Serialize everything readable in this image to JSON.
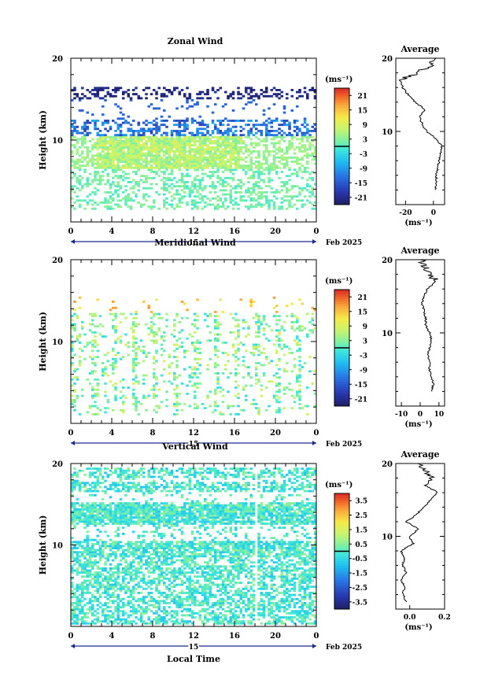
{
  "chart_data": [
    {
      "type": "heatmap",
      "title": "Zonal Wind",
      "ylabel": "Height (km)",
      "yticks": [
        "10",
        "20"
      ],
      "xticks": [
        "0",
        "4",
        "8",
        "12",
        "16",
        "20",
        "0"
      ],
      "day_label": "15",
      "month_label": "Feb 2025",
      "xlim": [
        0,
        24
      ],
      "ylim": [
        0,
        20
      ],
      "colorbar": {
        "unit": "(ms⁻¹)",
        "ticks": [
          "21",
          "15",
          "9",
          "3",
          "-3",
          "-9",
          "-15",
          "-21"
        ],
        "range": [
          -24,
          24
        ]
      },
      "average_panel": {
        "title": "Average",
        "xlabel": "(ms⁻¹)",
        "xticks": [
          "-20",
          "0"
        ],
        "ytick": "10",
        "xlim": [
          -27,
          8
        ],
        "profile": {
          "heights": [
            2,
            3,
            4,
            5,
            6,
            7,
            8,
            9,
            10,
            11,
            12,
            13,
            14,
            15,
            16,
            17,
            18,
            19,
            20
          ],
          "values": [
            1,
            2,
            2,
            3,
            4,
            5,
            6,
            2,
            -5,
            -8,
            -10,
            -6,
            -13,
            -18,
            -22,
            -24,
            -12,
            -3,
            2
          ]
        }
      }
    },
    {
      "type": "heatmap",
      "title": "Meridional Wind",
      "ylabel": "Height (km)",
      "yticks": [
        "10",
        "20"
      ],
      "xticks": [
        "0",
        "4",
        "8",
        "12",
        "16",
        "20",
        "0"
      ],
      "day_label": "15",
      "month_label": "Feb 2025",
      "xlim": [
        0,
        24
      ],
      "ylim": [
        0,
        20
      ],
      "colorbar": {
        "unit": "(ms⁻¹)",
        "ticks": [
          "21",
          "15",
          "9",
          "3",
          "-3",
          "-9",
          "-15",
          "-21"
        ],
        "range": [
          -24,
          24
        ]
      },
      "average_panel": {
        "title": "Average",
        "xlabel": "(ms⁻¹)",
        "xticks": [
          "-10",
          "0",
          "10"
        ],
        "ytick": "10",
        "xlim": [
          -13,
          13
        ],
        "profile": {
          "heights": [
            2,
            3,
            4,
            5,
            6,
            7,
            8,
            9,
            10,
            11,
            12,
            13,
            14,
            15,
            16,
            17,
            18,
            19,
            20
          ],
          "values": [
            6,
            7,
            6,
            5,
            5,
            4,
            5,
            6,
            5,
            3,
            3,
            2,
            1,
            2,
            4,
            8,
            6,
            3,
            0
          ]
        }
      }
    },
    {
      "type": "heatmap",
      "title": "Vertical Wind",
      "ylabel": "Height (km)",
      "yticks": [
        "10",
        "20"
      ],
      "xticks": [
        "0",
        "4",
        "8",
        "12",
        "16",
        "20",
        "0"
      ],
      "day_label": "15",
      "month_label": "Feb 2025",
      "xlabel": "Local Time",
      "xlim": [
        0,
        24
      ],
      "ylim": [
        0,
        20
      ],
      "colorbar": {
        "unit": "(ms⁻¹)",
        "ticks": [
          "3.5",
          "2.5",
          "1.5",
          "0.5",
          "-0.5",
          "-1.5",
          "-2.5",
          "-3.5"
        ],
        "range": [
          -4,
          4
        ]
      },
      "average_panel": {
        "title": "Average",
        "xlabel": "(ms⁻¹)",
        "xticks": [
          "0.0",
          "0.2"
        ],
        "ytick": "10",
        "xlim": [
          -0.08,
          0.2
        ],
        "profile": {
          "heights": [
            1,
            2,
            3,
            4,
            5,
            6,
            7,
            8,
            9,
            10,
            11,
            12,
            13,
            14,
            15,
            16,
            17,
            18,
            19,
            20
          ],
          "values": [
            -0.02,
            -0.04,
            -0.03,
            -0.05,
            -0.02,
            -0.04,
            -0.03,
            -0.05,
            0.02,
            0.0,
            0.05,
            -0.02,
            0.04,
            0.08,
            0.12,
            0.16,
            0.09,
            0.13,
            0.1,
            0.05
          ]
        }
      }
    }
  ]
}
